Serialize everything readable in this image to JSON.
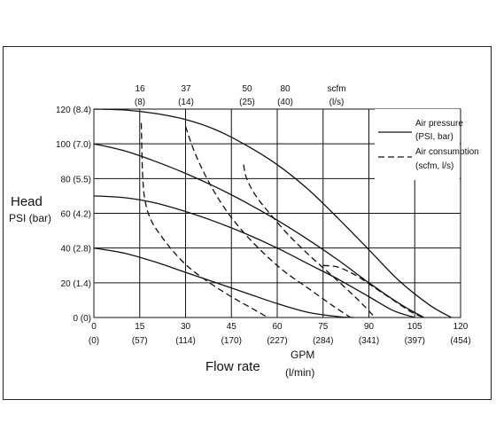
{
  "chart_data": {
    "type": "line",
    "title": "",
    "ylabel_line1": "Head",
    "ylabel_line2": "PSI (bar)",
    "xlabel": "Flow rate",
    "xunit_line1": "GPM",
    "xunit_line2": "(l/min)",
    "xlim": [
      0,
      120
    ],
    "ylim": [
      0,
      120
    ],
    "grid": true,
    "x_ticks_primary": [
      "0",
      "15",
      "30",
      "45",
      "60",
      "75",
      "90",
      "105",
      "120"
    ],
    "x_ticks_secondary": [
      "(0)",
      "(57)",
      "(114)",
      "(170)",
      "(227)",
      "(284)",
      "(341)",
      "(397)",
      "(454)"
    ],
    "y_ticks": [
      "0 (0)",
      "20 (1.4)",
      "40 (2.8)",
      "60 (4.2)",
      "80 (5.5)",
      "100 (7.0)",
      "120 (8.4)"
    ],
    "top_axis": {
      "labels_line1": [
        "16",
        "37",
        "50",
        "80",
        "scfm"
      ],
      "labels_line2": [
        "(8)",
        "(14)",
        "(25)",
        "(40)",
        "(l/s)"
      ]
    },
    "legend": {
      "position": "top-right",
      "entries": [
        {
          "line1": "Air pressure",
          "line2": "(PSI, bar)",
          "style": "solid"
        },
        {
          "line1": "Air consumption",
          "line2": "(scfm, l/s)",
          "style": "dashed"
        }
      ]
    },
    "series": [
      {
        "style": "solid",
        "x": [
          0,
          10,
          20,
          30,
          40,
          50,
          60,
          70,
          80,
          90,
          100,
          110,
          117
        ],
        "y": [
          120,
          119.5,
          117.5,
          114,
          108,
          99,
          88,
          74,
          57,
          39,
          21,
          7,
          0
        ]
      },
      {
        "style": "solid",
        "x": [
          0,
          10,
          20,
          30,
          40,
          50,
          60,
          70,
          80,
          90,
          100,
          108
        ],
        "y": [
          100,
          96,
          90,
          83,
          75,
          66,
          56,
          45,
          33,
          20,
          8,
          0
        ]
      },
      {
        "style": "solid",
        "x": [
          0,
          10,
          20,
          30,
          40,
          50,
          60,
          70,
          80,
          90,
          98,
          105
        ],
        "y": [
          70,
          69,
          66,
          61,
          55,
          48,
          40,
          31,
          22,
          12,
          4,
          0
        ]
      },
      {
        "style": "solid",
        "x": [
          0,
          10,
          20,
          30,
          40,
          50,
          60,
          70,
          80,
          85
        ],
        "y": [
          40,
          37,
          32,
          26,
          20,
          14,
          8,
          3,
          0.5,
          0
        ]
      },
      {
        "style": "dashed",
        "x": [
          15.5,
          16,
          17,
          19,
          22,
          26,
          31,
          37,
          44,
          52,
          57
        ],
        "y": [
          112,
          80,
          65,
          55,
          47,
          38,
          29,
          21,
          13,
          5,
          0
        ]
      },
      {
        "style": "dashed",
        "x": [
          30,
          33,
          37,
          42,
          48,
          55,
          62,
          70,
          78,
          84
        ],
        "y": [
          110,
          95,
          80,
          65,
          51,
          38,
          27,
          17,
          7,
          0
        ]
      },
      {
        "style": "dashed",
        "x": [
          49,
          50,
          53,
          58,
          64,
          71,
          78,
          86,
          92
        ],
        "y": [
          88,
          80,
          70,
          59,
          47,
          35,
          24,
          11,
          0
        ]
      },
      {
        "style": "dashed",
        "x": [
          75,
          80,
          86,
          92,
          98,
          104,
          108
        ],
        "y": [
          30,
          29,
          24,
          17,
          10,
          3,
          0
        ]
      }
    ]
  }
}
